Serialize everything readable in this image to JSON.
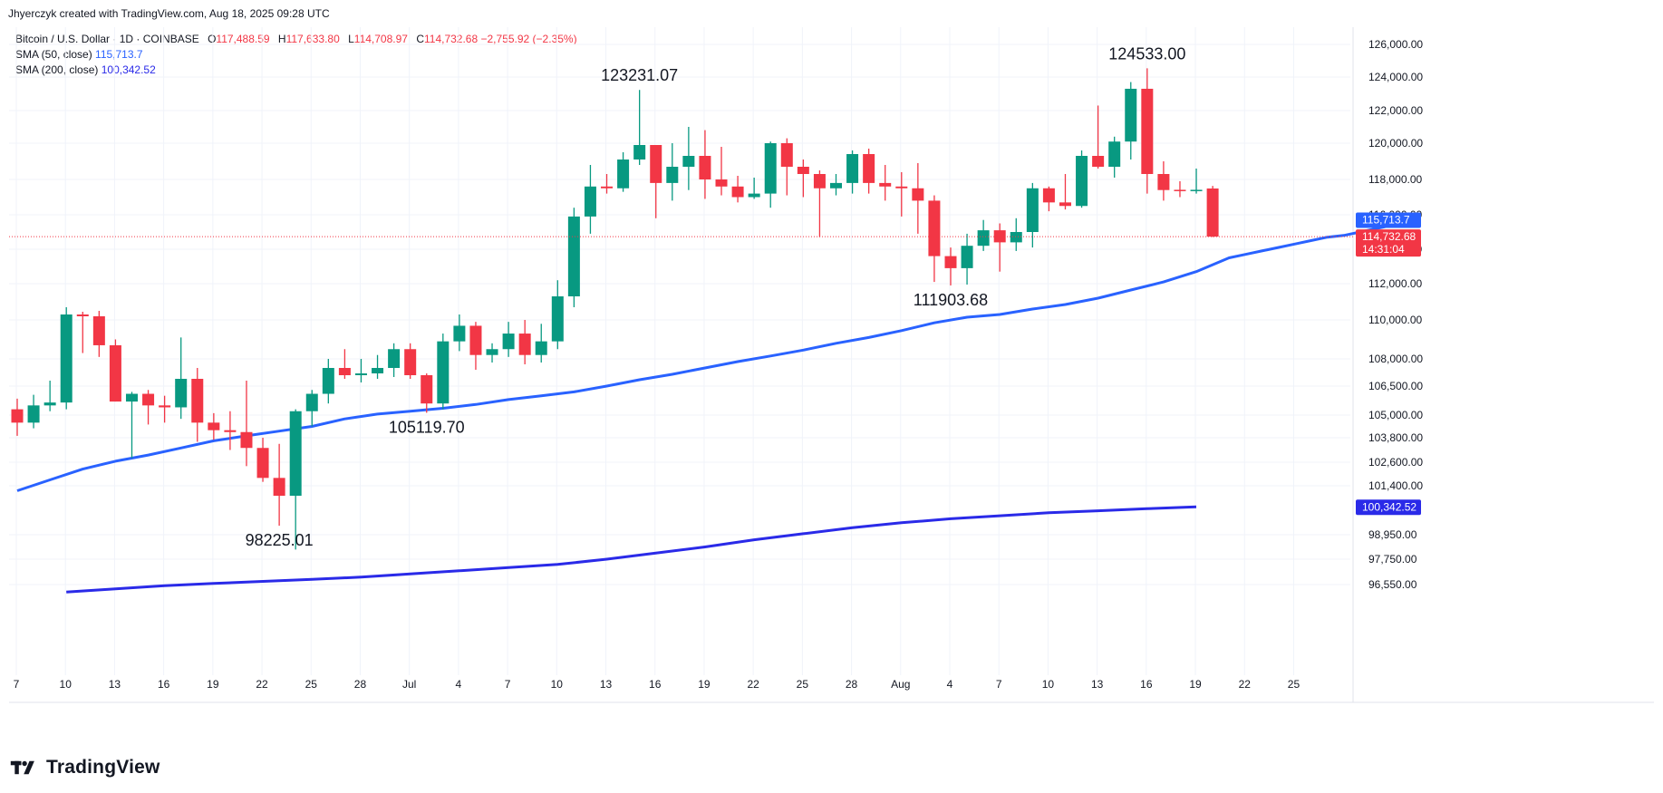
{
  "header": {
    "credit": "Jhyerczyk created with TradingView.com, Aug 18, 2025 09:28 UTC"
  },
  "legend": {
    "symbol": "Bitcoin / U.S. Dollar · 1D · COINBASE",
    "o_key": "O",
    "o_val": "117,488.59",
    "h_key": "H",
    "h_val": "117,633.80",
    "l_key": "L",
    "l_val": "114,708.97",
    "c_key": "C",
    "c_val": "114,732.68",
    "change": "−2,755.92 (−2.35%)",
    "sma50_label": "SMA (50, close)",
    "sma50_val": "115,713.7",
    "sma200_label": "SMA (200, close)",
    "sma200_val": "100,342.52"
  },
  "brand": {
    "name": "TradingView"
  },
  "colors": {
    "up": "#089981",
    "down": "#f23645",
    "sma50": "#2962ff",
    "sma200": "#2a2ae8",
    "grid": "#f0f3fa"
  },
  "chart_data": {
    "type": "candlestick",
    "symbol": "Bitcoin / U.S. Dollar",
    "interval": "1D",
    "exchange": "COINBASE",
    "start_date": "2025-06-07",
    "x_ticks": [
      "7",
      "10",
      "13",
      "16",
      "19",
      "22",
      "25",
      "28",
      "Jul",
      "4",
      "7",
      "10",
      "13",
      "16",
      "19",
      "22",
      "25",
      "28",
      "Aug",
      "4",
      "7",
      "10",
      "13",
      "16",
      "19",
      "22",
      "25"
    ],
    "y_ticks": [
      "126,000.00",
      "124,000.00",
      "122,000.00",
      "120,000.00",
      "118,000.00",
      "116,000.00",
      "114,000.00",
      "112,000.00",
      "110,000.00",
      "108,000.00",
      "106,500.00",
      "105,000.00",
      "103,800.00",
      "102,600.00",
      "101,400.00",
      "98,950.00",
      "97,750.00",
      "96,550.00"
    ],
    "y_tick_values": [
      126000,
      124000,
      122000,
      120000,
      118000,
      116000,
      114000,
      112000,
      110000,
      108000,
      106500,
      105000,
      103800,
      102600,
      101400,
      98950,
      97750,
      96550
    ],
    "candles": [
      [
        105300,
        105850,
        103900,
        104600
      ],
      [
        104600,
        106050,
        104300,
        105500
      ],
      [
        105500,
        106800,
        105200,
        105650
      ],
      [
        105650,
        110700,
        105300,
        110300
      ],
      [
        110300,
        110450,
        108300,
        110200
      ],
      [
        110200,
        110500,
        108100,
        108700
      ],
      [
        108700,
        109000,
        105700,
        105700
      ],
      [
        105700,
        106200,
        102800,
        106100
      ],
      [
        106100,
        106300,
        104500,
        105500
      ],
      [
        105500,
        106000,
        104600,
        105400
      ],
      [
        105400,
        109100,
        104800,
        106900
      ],
      [
        106900,
        107500,
        103600,
        104600
      ],
      [
        104600,
        105100,
        103700,
        104200
      ],
      [
        104200,
        105200,
        103200,
        104100
      ],
      [
        104100,
        106800,
        102400,
        103300
      ],
      [
        103300,
        103800,
        101600,
        101800
      ],
      [
        101800,
        103500,
        99400,
        100900
      ],
      [
        100900,
        105300,
        98225,
        105200
      ],
      [
        105200,
        106300,
        104400,
        106100
      ],
      [
        106100,
        108000,
        105600,
        107500
      ],
      [
        107500,
        108500,
        106900,
        107100
      ],
      [
        107100,
        108000,
        106700,
        107200
      ],
      [
        107200,
        108200,
        106900,
        107500
      ],
      [
        107500,
        108800,
        107000,
        108500
      ],
      [
        108500,
        108800,
        106900,
        107100
      ],
      [
        107100,
        107200,
        105119,
        105600
      ],
      [
        105600,
        109300,
        105300,
        108900
      ],
      [
        108900,
        110300,
        108400,
        109700
      ],
      [
        109700,
        109900,
        107400,
        108200
      ],
      [
        108200,
        108800,
        107800,
        108500
      ],
      [
        108500,
        109900,
        108100,
        109300
      ],
      [
        109300,
        110000,
        107700,
        108200
      ],
      [
        108200,
        109800,
        107800,
        108900
      ],
      [
        108900,
        112200,
        108500,
        111300
      ],
      [
        111300,
        116400,
        110700,
        115900
      ],
      [
        115900,
        118800,
        114900,
        117600
      ],
      [
        117600,
        118300,
        117200,
        117500
      ],
      [
        117500,
        119500,
        117300,
        119100
      ],
      [
        119100,
        123231,
        118800,
        119900
      ],
      [
        119900,
        119900,
        115800,
        117800
      ],
      [
        117800,
        120000,
        116800,
        118700
      ],
      [
        118700,
        121000,
        117400,
        119300
      ],
      [
        119300,
        120800,
        116900,
        118000
      ],
      [
        118000,
        119800,
        117100,
        117600
      ],
      [
        117600,
        118200,
        116700,
        117000
      ],
      [
        117000,
        118100,
        116900,
        117200
      ],
      [
        117200,
        120100,
        116400,
        120000
      ],
      [
        120000,
        120300,
        117100,
        118700
      ],
      [
        118700,
        119100,
        117000,
        118300
      ],
      [
        118300,
        118500,
        114700,
        117500
      ],
      [
        117500,
        118300,
        117100,
        117800
      ],
      [
        117800,
        119600,
        117200,
        119400
      ],
      [
        119400,
        119700,
        117200,
        117800
      ],
      [
        117800,
        118800,
        116800,
        117600
      ],
      [
        117600,
        118400,
        115900,
        117500
      ],
      [
        117500,
        118900,
        114900,
        116800
      ],
      [
        116800,
        117100,
        112100,
        113600
      ],
      [
        113600,
        114100,
        111903,
        112900
      ],
      [
        112900,
        114900,
        111950,
        114200
      ],
      [
        114200,
        115700,
        113900,
        115100
      ],
      [
        115100,
        115500,
        112700,
        114400
      ],
      [
        114400,
        115800,
        113900,
        115000
      ],
      [
        115000,
        117800,
        114100,
        117500
      ],
      [
        117500,
        117600,
        116200,
        116700
      ],
      [
        116700,
        118300,
        116300,
        116500
      ],
      [
        116500,
        119600,
        116400,
        119300
      ],
      [
        119300,
        122300,
        118600,
        118700
      ],
      [
        118700,
        120400,
        118100,
        120100
      ],
      [
        120100,
        123700,
        119100,
        123300
      ],
      [
        123300,
        124533,
        117200,
        118300
      ],
      [
        118300,
        119000,
        116800,
        117400
      ],
      [
        117400,
        117900,
        117000,
        117350
      ],
      [
        117350,
        118600,
        117200,
        117400
      ],
      [
        117488.59,
        117633.8,
        114708.97,
        114732.68
      ]
    ],
    "sma50": [
      [
        0,
        101150
      ],
      [
        2,
        101700
      ],
      [
        4,
        102250
      ],
      [
        6,
        102650
      ],
      [
        8,
        102950
      ],
      [
        10,
        103300
      ],
      [
        12,
        103650
      ],
      [
        14,
        103900
      ],
      [
        16,
        104150
      ],
      [
        18,
        104400
      ],
      [
        20,
        104800
      ],
      [
        22,
        105050
      ],
      [
        24,
        105200
      ],
      [
        26,
        105350
      ],
      [
        28,
        105550
      ],
      [
        30,
        105800
      ],
      [
        32,
        106000
      ],
      [
        34,
        106200
      ],
      [
        36,
        106500
      ],
      [
        38,
        106850
      ],
      [
        40,
        107150
      ],
      [
        42,
        107500
      ],
      [
        44,
        107850
      ],
      [
        46,
        108150
      ],
      [
        48,
        108450
      ],
      [
        50,
        108800
      ],
      [
        52,
        109100
      ],
      [
        54,
        109450
      ],
      [
        56,
        109850
      ],
      [
        58,
        110150
      ],
      [
        60,
        110300
      ],
      [
        62,
        110600
      ],
      [
        64,
        110850
      ],
      [
        66,
        111200
      ],
      [
        68,
        111650
      ],
      [
        70,
        112100
      ],
      [
        72,
        112700
      ],
      [
        73,
        113100
      ],
      [
        74,
        113500
      ],
      [
        75,
        113700
      ],
      [
        76,
        113900
      ],
      [
        77,
        114100
      ],
      [
        78,
        114300
      ],
      [
        79,
        114500
      ],
      [
        80,
        114700
      ],
      [
        81,
        114800
      ],
      [
        82,
        115000
      ],
      [
        83,
        115200
      ],
      [
        84,
        115400
      ],
      [
        85,
        115713.7
      ]
    ],
    "sma200": [
      [
        3,
        96200
      ],
      [
        6,
        96350
      ],
      [
        9,
        96500
      ],
      [
        12,
        96600
      ],
      [
        15,
        96700
      ],
      [
        18,
        96800
      ],
      [
        21,
        96900
      ],
      [
        24,
        97050
      ],
      [
        27,
        97200
      ],
      [
        30,
        97350
      ],
      [
        33,
        97500
      ],
      [
        36,
        97750
      ],
      [
        39,
        98050
      ],
      [
        42,
        98350
      ],
      [
        45,
        98700
      ],
      [
        48,
        99000
      ],
      [
        51,
        99300
      ],
      [
        54,
        99550
      ],
      [
        57,
        99750
      ],
      [
        60,
        99900
      ],
      [
        63,
        100050
      ],
      [
        66,
        100150
      ],
      [
        69,
        100250
      ],
      [
        72,
        100342.52
      ]
    ],
    "annotations": [
      {
        "text": "98225.01",
        "index": 16
      },
      {
        "text": "105119.70",
        "index": 25
      },
      {
        "text": "123231.07",
        "index": 38
      },
      {
        "text": "111903.68",
        "index": 57
      },
      {
        "text": "124533.00",
        "index": 69
      }
    ],
    "last_price_label": "114,732.68",
    "countdown": "14:31:04",
    "sma50_axis_label": "115,713.7",
    "sma200_axis_label": "100,342.52",
    "grid": true
  }
}
